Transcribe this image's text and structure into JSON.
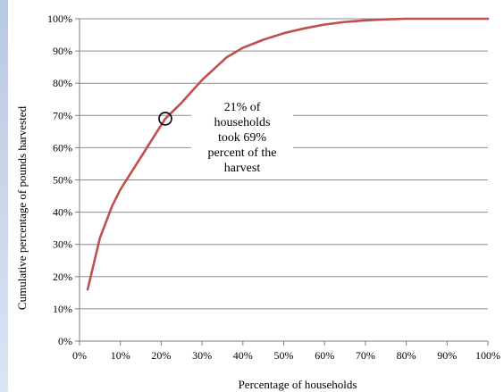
{
  "chart_data": {
    "type": "line",
    "title": "",
    "xlabel": "Percentage of households",
    "ylabel": "Cumulative percentage of pounds harvested",
    "xlim": [
      0,
      100
    ],
    "ylim": [
      0,
      100
    ],
    "x_ticks": [
      "0%",
      "10%",
      "20%",
      "30%",
      "40%",
      "50%",
      "60%",
      "70%",
      "80%",
      "90%",
      "100%"
    ],
    "y_ticks": [
      "0%",
      "10%",
      "20%",
      "30%",
      "40%",
      "50%",
      "60%",
      "70%",
      "80%",
      "90%",
      "100%"
    ],
    "grid": "horizontal",
    "series": [
      {
        "color": "#c0504d",
        "x": [
          2,
          5,
          8,
          10,
          13,
          16,
          19,
          21,
          25,
          30,
          36,
          40,
          45,
          50,
          55,
          60,
          65,
          70,
          75,
          80,
          85,
          90,
          95,
          100
        ],
        "y": [
          16,
          32,
          42,
          47,
          53,
          59,
          65,
          69,
          74,
          81,
          88,
          91,
          93.5,
          95.5,
          97,
          98.2,
          99,
          99.5,
          99.8,
          100,
          100,
          100,
          100,
          100
        ]
      }
    ],
    "annotation": {
      "text_lines": [
        "21% of",
        "households",
        "took 69%",
        "percent of the",
        "harvest"
      ],
      "marker": {
        "x": 21,
        "y": 69,
        "shape": "open-circle"
      }
    }
  }
}
